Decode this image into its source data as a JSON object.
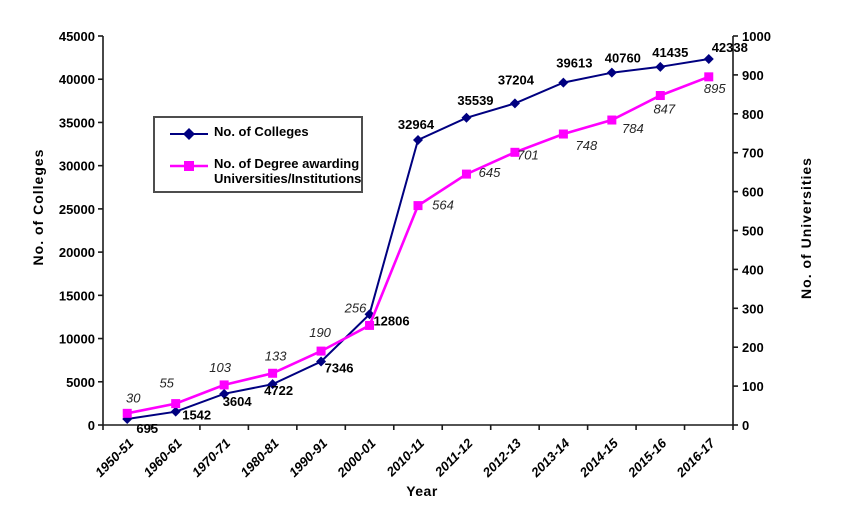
{
  "chart_data": {
    "type": "line",
    "categories": [
      "1950-51",
      "1960-61",
      "1970-71",
      "1980-81",
      "1990-91",
      "2000-01",
      "2010-11",
      "2011-12",
      "2012-13",
      "2013-14",
      "2014-15",
      "2015-16",
      "2016-17"
    ],
    "series": [
      {
        "name": "No. of Colleges",
        "axis": "left",
        "color": "#000080",
        "marker": "diamond",
        "values": [
          695,
          1542,
          3604,
          4722,
          7346,
          12806,
          32964,
          35539,
          37204,
          39613,
          40760,
          41435,
          42338
        ]
      },
      {
        "name": "No. of Degree awarding Universities/Institutions",
        "axis": "right",
        "color": "#FF00FF",
        "marker": "square",
        "values": [
          30,
          55,
          103,
          133,
          190,
          256,
          564,
          645,
          701,
          748,
          784,
          847,
          895
        ]
      }
    ],
    "xlabel": "Year",
    "ylabel_left": "No. of Colleges",
    "ylabel_right": "No. of Universities",
    "ylim_left": [
      0,
      45000
    ],
    "ytick_step_left": 5000,
    "ylim_right": [
      0,
      1000
    ],
    "ytick_step_right": 100,
    "grid": false,
    "legend_position": "inside-top-left",
    "data_labels_shown": true
  },
  "legend": {
    "item1": "No. of Colleges",
    "item2_line1": "No. of Degree awarding",
    "item2_line2": "Universities/Institutions"
  },
  "axes": {
    "left_title": "No. of Colleges",
    "right_title": "No. of Universities",
    "x_title": "Year"
  },
  "colors": {
    "colleges_line": "#000080",
    "universities_line": "#FF00FF",
    "axis": "#1a1a1a",
    "background": "#ffffff"
  }
}
